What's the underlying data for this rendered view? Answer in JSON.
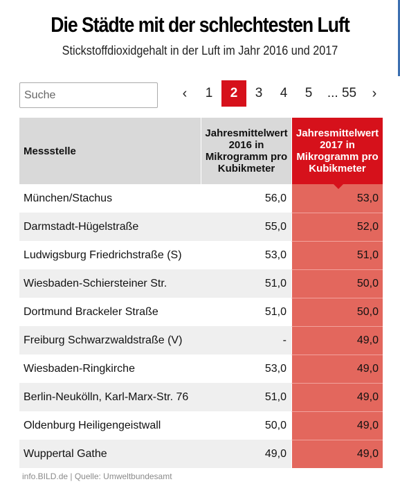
{
  "header": {
    "title": "Die Städte mit der schlechtesten Luft",
    "subtitle": "Stickstoffdioxidgehalt in der Luft im Jahr 2016 und 2017"
  },
  "search": {
    "placeholder": "Suche",
    "value": ""
  },
  "pagination": {
    "prev": "‹",
    "pages": [
      "1",
      "2",
      "3",
      "4",
      "5"
    ],
    "active": "2",
    "ellipsis_last": "... 55",
    "next": "›"
  },
  "table": {
    "columns": {
      "station": "Messstelle",
      "y2016": "Jahresmittelwert 2016 in Mikrogramm pro Kubikmeter",
      "y2017": "Jahresmittelwert 2017 in Mikrogramm pro Kubikmeter"
    },
    "rows": [
      {
        "station": "München/Stachus",
        "y2016": "56,0",
        "y2017": "53,0"
      },
      {
        "station": "Darmstadt-Hügelstraße",
        "y2016": "55,0",
        "y2017": "52,0"
      },
      {
        "station": "Ludwigsburg Friedrichstraße (S)",
        "y2016": "53,0",
        "y2017": "51,0"
      },
      {
        "station": "Wiesbaden-Schiersteiner Str.",
        "y2016": "51,0",
        "y2017": "50,0"
      },
      {
        "station": "Dortmund Brackeler Straße",
        "y2016": "51,0",
        "y2017": "50,0"
      },
      {
        "station": "Freiburg Schwarzwaldstraße (V)",
        "y2016": "-",
        "y2017": "49,0"
      },
      {
        "station": "Wiesbaden-Ringkirche",
        "y2016": "53,0",
        "y2017": "49,0"
      },
      {
        "station": "Berlin-Neukölln, Karl-Marx-Str. 76",
        "y2016": "51,0",
        "y2017": "49,0"
      },
      {
        "station": "Oldenburg Heiligengeistwall",
        "y2016": "50,0",
        "y2017": "49,0"
      },
      {
        "station": "Wuppertal Gathe",
        "y2016": "49,0",
        "y2017": "49,0"
      }
    ]
  },
  "footer": {
    "source": "info.BILD.de | Quelle: Umweltbundesamt"
  },
  "colors": {
    "accent": "#d6111b",
    "highlight_cell": "#e3675d",
    "header_gray": "#d9d9d9"
  }
}
